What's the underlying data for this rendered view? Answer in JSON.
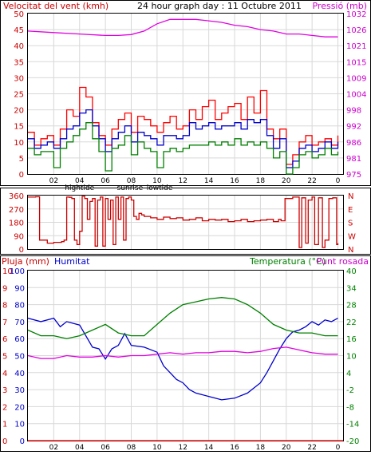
{
  "header": {
    "wind_label": "Velocitat del vent (kmh)",
    "title": "24 hour graph day : 11 Octubre 2011",
    "pressure_label": "Pressió (mb)"
  },
  "bottom_header": {
    "rain_label": "Pluja (mm)",
    "humidity_label": "Humitat",
    "temp_label": "Temperatura (°C)",
    "dew_label": "Punt rosada"
  },
  "colors": {
    "wind_gust": "#ff0000",
    "wind_avg": "#0000cc",
    "wind_low": "#008000",
    "pressure": "#e000e0",
    "direction": "#cc0000",
    "rain": "#ff0000",
    "humidity": "#0000cc",
    "temperature": "#008000",
    "dew_point": "#e000e0",
    "grid": "#d8d8d8",
    "left_axis_text": "#cc0000",
    "right_axis_text": "#cc00cc",
    "bottom_left_text": "#0000cc",
    "bottom_right_text": "#008000"
  },
  "chart_data": [
    {
      "type": "line",
      "title": "24 hour graph day : 11 Octubre 2011",
      "xlabel": "",
      "ylabel": "Velocitat del vent (kmh)",
      "xlim": [
        0,
        24.4
      ],
      "ylim": [
        0,
        50
      ],
      "y2label": "Pressió (mb)",
      "y2lim": [
        975,
        1030
      ],
      "x_ticks": [
        "02",
        "04",
        "06",
        "08",
        "10",
        "12",
        "14",
        "16",
        "18",
        "20",
        "22",
        "0"
      ],
      "y_ticks": [
        "0",
        "5",
        "10",
        "15",
        "20",
        "25",
        "30",
        "35",
        "40",
        "45",
        "50"
      ],
      "y2_ticks": [
        "975",
        "981",
        "986",
        "992",
        "998",
        "1004",
        "1009",
        "1015",
        "1021",
        "1026",
        "1032"
      ],
      "events": [
        {
          "label": "hightide",
          "x": 4.0
        },
        {
          "label": "sunrise",
          "x": 7.9
        },
        {
          "label": "lowtide",
          "x": 10.2
        }
      ],
      "grid": true,
      "series": [
        {
          "name": "gust",
          "x": [
            0,
            0.5,
            1,
            1.5,
            2,
            2.5,
            3,
            3.5,
            4,
            4.5,
            5,
            5.5,
            6,
            6.5,
            7,
            7.5,
            8,
            8.5,
            9,
            9.5,
            10,
            10.5,
            11,
            11.5,
            12,
            12.5,
            13,
            13.5,
            14,
            14.5,
            15,
            15.5,
            16,
            16.5,
            17,
            17.5,
            18,
            18.5,
            19,
            19.5,
            20,
            20.5,
            21,
            21.5,
            22,
            22.5,
            23,
            23.5,
            24
          ],
          "values": [
            13,
            9,
            11,
            12,
            9,
            14,
            20,
            18,
            27,
            24,
            16,
            12,
            9,
            14,
            17,
            19,
            13,
            18,
            17,
            15,
            13,
            16,
            18,
            14,
            15,
            20,
            17,
            21,
            23,
            17,
            19,
            21,
            22,
            17,
            24,
            19,
            26,
            14,
            11,
            14,
            3,
            6,
            10,
            12,
            9,
            10,
            11,
            9,
            12
          ]
        },
        {
          "name": "average",
          "x": [
            0,
            0.5,
            1,
            1.5,
            2,
            2.5,
            3,
            3.5,
            4,
            4.5,
            5,
            5.5,
            6,
            6.5,
            7,
            7.5,
            8,
            8.5,
            9,
            9.5,
            10,
            10.5,
            11,
            11.5,
            12,
            12.5,
            13,
            13.5,
            14,
            14.5,
            15,
            15.5,
            16,
            16.5,
            17,
            17.5,
            18,
            18.5,
            19,
            19.5,
            20,
            20.5,
            21,
            21.5,
            22,
            22.5,
            23,
            23.5,
            24
          ],
          "values": [
            11,
            8,
            9,
            10,
            8,
            11,
            14,
            15,
            19,
            20,
            15,
            11,
            7,
            11,
            13,
            15,
            10,
            13,
            12,
            11,
            9,
            12,
            12,
            11,
            12,
            16,
            14,
            15,
            16,
            14,
            15,
            15,
            16,
            14,
            17,
            16,
            17,
            12,
            8,
            11,
            2,
            4,
            8,
            9,
            7,
            8,
            10,
            8,
            10
          ]
        },
        {
          "name": "low",
          "x": [
            0,
            0.5,
            1,
            1.5,
            2,
            2.5,
            3,
            3.5,
            4,
            4.5,
            5,
            5.5,
            6,
            6.5,
            7,
            7.5,
            8,
            8.5,
            9,
            9.5,
            10,
            10.5,
            11,
            11.5,
            12,
            12.5,
            13,
            13.5,
            14,
            14.5,
            15,
            15.5,
            16,
            16.5,
            17,
            17.5,
            18,
            18.5,
            19,
            19.5,
            20,
            20.5,
            21,
            21.5,
            22,
            22.5,
            23,
            23.5,
            24
          ],
          "values": [
            8,
            6,
            7,
            7,
            2,
            8,
            10,
            12,
            14,
            16,
            11,
            7,
            1,
            8,
            9,
            12,
            6,
            10,
            8,
            7,
            2,
            7,
            8,
            7,
            8,
            9,
            9,
            9,
            10,
            9,
            10,
            9,
            11,
            9,
            10,
            9,
            10,
            8,
            5,
            7,
            0,
            2,
            6,
            7,
            5,
            6,
            8,
            6,
            7
          ]
        },
        {
          "name": "pressure",
          "axis": "y2",
          "x": [
            0,
            2,
            4,
            6,
            7,
            8,
            9,
            10,
            11,
            12,
            13,
            14,
            15,
            16,
            17,
            18,
            19,
            20,
            21,
            22,
            23,
            24
          ],
          "values": [
            1024,
            1023.5,
            1023,
            1022.5,
            1022.5,
            1022.8,
            1024,
            1026.5,
            1028,
            1028,
            1028,
            1027.5,
            1027,
            1026,
            1025.5,
            1024.5,
            1024,
            1023,
            1023,
            1022.5,
            1022,
            1022
          ]
        }
      ]
    },
    {
      "type": "line",
      "title": "",
      "xlabel": "",
      "ylabel": "",
      "xlim": [
        0,
        24.4
      ],
      "ylim": [
        0,
        360
      ],
      "y_ticks": [
        "0",
        "90",
        "180",
        "270",
        "360"
      ],
      "y2_ticks": [
        "N",
        "W",
        "S",
        "E",
        "N"
      ],
      "grid": true,
      "series": [
        {
          "name": "direction",
          "x": [
            0,
            0.6,
            0.9,
            1.5,
            2,
            2.6,
            2.8,
            3,
            3.2,
            3.4,
            3.6,
            3.8,
            4,
            4.2,
            4.4,
            4.6,
            4.8,
            5,
            5.2,
            5.4,
            5.6,
            5.8,
            6,
            6.2,
            6.4,
            6.6,
            6.8,
            7,
            7.2,
            7.4,
            7.6,
            7.8,
            8,
            8.2,
            8.4,
            8.6,
            8.8,
            9,
            9.5,
            10,
            10.5,
            11,
            11.5,
            12,
            12.5,
            13,
            13.5,
            14,
            14.5,
            15,
            15.5,
            16,
            16.5,
            17,
            17.5,
            18,
            18.5,
            19,
            19.4,
            19.6,
            19.9,
            20.5,
            21,
            21.2,
            21.5,
            21.7,
            22,
            22.2,
            22.5,
            22.8,
            23,
            23.3,
            23.6,
            23.9,
            24
          ],
          "values": [
            350,
            352,
            60,
            40,
            45,
            50,
            60,
            350,
            348,
            340,
            60,
            30,
            120,
            355,
            340,
            200,
            320,
            340,
            20,
            330,
            350,
            20,
            340,
            200,
            330,
            30,
            350,
            200,
            350,
            60,
            340,
            350,
            330,
            220,
            200,
            240,
            230,
            220,
            210,
            200,
            215,
            205,
            210,
            195,
            200,
            210,
            190,
            200,
            195,
            200,
            185,
            190,
            200,
            185,
            190,
            195,
            200,
            185,
            200,
            190,
            340,
            350,
            10,
            345,
            40,
            330,
            350,
            30,
            345,
            10,
            60,
            340,
            345,
            30,
            40
          ]
        }
      ]
    },
    {
      "type": "line",
      "title": "",
      "xlabel": "",
      "ylabel": "Pluja (mm)",
      "xlim": [
        0,
        24.4
      ],
      "ylim": [
        0,
        100
      ],
      "y2label": "Temperatura (°C)",
      "y2lim": [
        -20,
        40
      ],
      "x_ticks": [
        "02",
        "04",
        "06",
        "08",
        "10",
        "12",
        "14",
        "16",
        "18",
        "20",
        "22",
        "0"
      ],
      "y_ticks_rain": [
        "0",
        "1",
        "2",
        "3",
        "4",
        "5",
        "6",
        "7",
        "8",
        "9",
        "10"
      ],
      "y_ticks_humidity": [
        "0",
        "10",
        "20",
        "30",
        "40",
        "50",
        "60",
        "70",
        "80",
        "90",
        "100"
      ],
      "y2_ticks": [
        "-20",
        "-14",
        "-8",
        "-2",
        "4",
        "10",
        "16",
        "22",
        "28",
        "34",
        "40"
      ],
      "events": [
        {
          "label": "hightide",
          "x": 4.0
        },
        {
          "label": "sunrise",
          "x": 7.9
        },
        {
          "label": "lowtide",
          "x": 10.2
        }
      ],
      "grid": true,
      "series": [
        {
          "name": "Pluja (mm)",
          "x": [
            0,
            24.4
          ],
          "values": [
            0,
            0
          ]
        },
        {
          "name": "Humitat",
          "x": [
            0,
            1,
            2,
            2.5,
            3,
            4,
            5,
            5.5,
            6,
            6.5,
            7,
            7.5,
            8,
            9,
            10,
            10.5,
            11,
            11.5,
            12,
            12.5,
            13,
            13.5,
            14,
            15,
            16,
            17,
            18,
            18.5,
            19,
            19.5,
            20,
            20.5,
            21,
            21.5,
            22,
            22.5,
            23,
            23.5,
            24
          ],
          "values": [
            72,
            70,
            72,
            67,
            70,
            68,
            55,
            54,
            48,
            54,
            56,
            63,
            56,
            55,
            52,
            44,
            40,
            36,
            34,
            30,
            28,
            27,
            26,
            24,
            25,
            28,
            34,
            40,
            47,
            54,
            60,
            64,
            65,
            67,
            70,
            68,
            71,
            70,
            72
          ]
        },
        {
          "name": "Temperatura (°C)",
          "axis": "y2",
          "x": [
            0,
            1,
            2,
            3,
            4,
            5,
            6,
            7,
            8,
            9,
            10,
            11,
            12,
            13,
            14,
            15,
            16,
            17,
            18,
            19,
            20,
            21,
            22,
            23,
            24
          ],
          "values": [
            19,
            17,
            17,
            16,
            17,
            19,
            21,
            18,
            17,
            17,
            21,
            25,
            28,
            29,
            30,
            30.5,
            30,
            28,
            25,
            21,
            19,
            18,
            18,
            17,
            17
          ]
        },
        {
          "name": "Punt rosada",
          "axis": "y2",
          "x": [
            0,
            1,
            2,
            3,
            4,
            5,
            6,
            7,
            8,
            9,
            10,
            11,
            12,
            13,
            14,
            15,
            16,
            17,
            18,
            19,
            20,
            21,
            22,
            23,
            24
          ],
          "values": [
            10,
            9,
            9,
            10,
            9.5,
            9.5,
            10,
            9.5,
            10,
            10,
            10.5,
            11,
            10.5,
            11,
            11,
            11.5,
            11.5,
            11,
            11.5,
            12.5,
            13,
            12,
            11,
            10.5,
            10.5
          ]
        }
      ]
    }
  ]
}
